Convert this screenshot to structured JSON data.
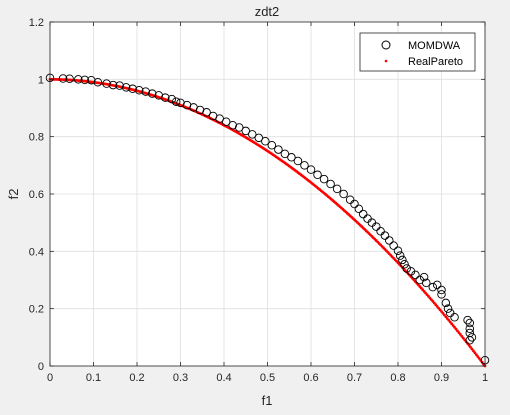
{
  "chart_data": {
    "type": "scatter",
    "title": "zdt2",
    "xlabel": "f1",
    "ylabel": "f2",
    "xlim": [
      0,
      1
    ],
    "ylim": [
      0,
      1.2
    ],
    "xticks": [
      0,
      0.1,
      0.2,
      0.3,
      0.4,
      0.5,
      0.6,
      0.7,
      0.8,
      0.9,
      1
    ],
    "xtick_labels": [
      "0",
      "0.1",
      "0.2",
      "0.3",
      "0.4",
      "0.5",
      "0.6",
      "0.7",
      "0.8",
      "0.9",
      "1"
    ],
    "yticks": [
      0,
      0.2,
      0.4,
      0.6,
      0.8,
      1,
      1.2
    ],
    "ytick_labels": [
      "0",
      "0.2",
      "0.4",
      "0.6",
      "0.8",
      "1",
      "1.2"
    ],
    "grid": true,
    "legend_position": "top-right",
    "series": [
      {
        "name": "MOMDWA",
        "marker": "circle-open",
        "color": "#000000",
        "points": [
          [
            0.0,
            1.005
          ],
          [
            0.03,
            1.003
          ],
          [
            0.045,
            1.002
          ],
          [
            0.065,
            1.0
          ],
          [
            0.08,
            0.998
          ],
          [
            0.095,
            0.997
          ],
          [
            0.11,
            0.99
          ],
          [
            0.13,
            0.985
          ],
          [
            0.145,
            0.98
          ],
          [
            0.16,
            0.978
          ],
          [
            0.175,
            0.972
          ],
          [
            0.19,
            0.967
          ],
          [
            0.205,
            0.962
          ],
          [
            0.22,
            0.957
          ],
          [
            0.235,
            0.95
          ],
          [
            0.25,
            0.944
          ],
          [
            0.265,
            0.936
          ],
          [
            0.28,
            0.931
          ],
          [
            0.29,
            0.922
          ],
          [
            0.3,
            0.918
          ],
          [
            0.315,
            0.91
          ],
          [
            0.33,
            0.902
          ],
          [
            0.345,
            0.893
          ],
          [
            0.36,
            0.885
          ],
          [
            0.375,
            0.872
          ],
          [
            0.39,
            0.863
          ],
          [
            0.405,
            0.852
          ],
          [
            0.42,
            0.84
          ],
          [
            0.435,
            0.832
          ],
          [
            0.45,
            0.82
          ],
          [
            0.465,
            0.808
          ],
          [
            0.48,
            0.796
          ],
          [
            0.495,
            0.784
          ],
          [
            0.51,
            0.77
          ],
          [
            0.525,
            0.755
          ],
          [
            0.54,
            0.74
          ],
          [
            0.555,
            0.728
          ],
          [
            0.57,
            0.715
          ],
          [
            0.585,
            0.7
          ],
          [
            0.6,
            0.685
          ],
          [
            0.615,
            0.667
          ],
          [
            0.63,
            0.652
          ],
          [
            0.645,
            0.635
          ],
          [
            0.66,
            0.618
          ],
          [
            0.675,
            0.6
          ],
          [
            0.69,
            0.58
          ],
          [
            0.7,
            0.565
          ],
          [
            0.71,
            0.548
          ],
          [
            0.72,
            0.53
          ],
          [
            0.73,
            0.514
          ],
          [
            0.74,
            0.5
          ],
          [
            0.75,
            0.486
          ],
          [
            0.76,
            0.47
          ],
          [
            0.77,
            0.455
          ],
          [
            0.78,
            0.438
          ],
          [
            0.79,
            0.42
          ],
          [
            0.8,
            0.402
          ],
          [
            0.805,
            0.385
          ],
          [
            0.81,
            0.37
          ],
          [
            0.815,
            0.355
          ],
          [
            0.82,
            0.34
          ],
          [
            0.83,
            0.33
          ],
          [
            0.84,
            0.318
          ],
          [
            0.85,
            0.3
          ],
          [
            0.86,
            0.31
          ],
          [
            0.865,
            0.29
          ],
          [
            0.88,
            0.275
          ],
          [
            0.89,
            0.283
          ],
          [
            0.9,
            0.265
          ],
          [
            0.9,
            0.25
          ],
          [
            0.91,
            0.22
          ],
          [
            0.915,
            0.2
          ],
          [
            0.92,
            0.185
          ],
          [
            0.93,
            0.17
          ],
          [
            0.96,
            0.16
          ],
          [
            0.965,
            0.15
          ],
          [
            0.965,
            0.13
          ],
          [
            0.965,
            0.115
          ],
          [
            0.97,
            0.1
          ],
          [
            0.965,
            0.09
          ],
          [
            1.0,
            0.02
          ]
        ]
      },
      {
        "name": "RealPareto",
        "marker": "point",
        "color": "#ff0000",
        "function": "f2 = 1 - f1^2",
        "x_range": [
          0,
          1
        ]
      }
    ]
  }
}
